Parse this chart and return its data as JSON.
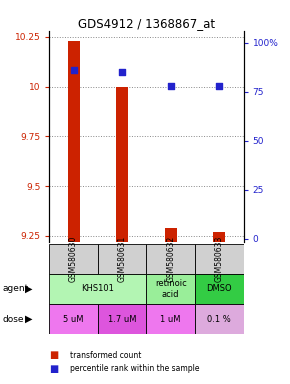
{
  "title": "GDS4912 / 1368867_at",
  "samples": [
    "GSM580630",
    "GSM580631",
    "GSM580632",
    "GSM580633"
  ],
  "red_values": [
    10.23,
    10.0,
    9.29,
    9.27
  ],
  "blue_values": [
    86,
    85,
    78,
    78
  ],
  "red_base": 9.22,
  "ylim_left": [
    9.22,
    10.28
  ],
  "ylim_right": [
    -1.5,
    106
  ],
  "yticks_left": [
    9.25,
    9.5,
    9.75,
    10.0,
    10.25
  ],
  "yticks_right": [
    0,
    25,
    50,
    75,
    100
  ],
  "ytick_labels_left": [
    "9.25",
    "9.5",
    "9.75",
    "10",
    "10.25"
  ],
  "ytick_labels_right": [
    "0",
    "25",
    "50",
    "75",
    "100%"
  ],
  "dose_row": [
    "5 uM",
    "1.7 uM",
    "1 uM",
    "0.1 %"
  ],
  "bar_color": "#cc2200",
  "dot_color": "#2222cc",
  "grid_color": "#888888",
  "background_color": "#ffffff",
  "left_tick_color": "#cc2200",
  "right_tick_color": "#2222cc",
  "sample_bg": "#d0d0d0",
  "agent_spans": [
    [
      0,
      2,
      "KHS101",
      "#b3f5b3"
    ],
    [
      2,
      3,
      "retinoic\nacid",
      "#99ee99"
    ],
    [
      3,
      4,
      "DMSO",
      "#33cc44"
    ]
  ],
  "dose_colors": [
    "#ee77ee",
    "#dd55dd",
    "#ee77ee",
    "#ddaadd"
  ]
}
